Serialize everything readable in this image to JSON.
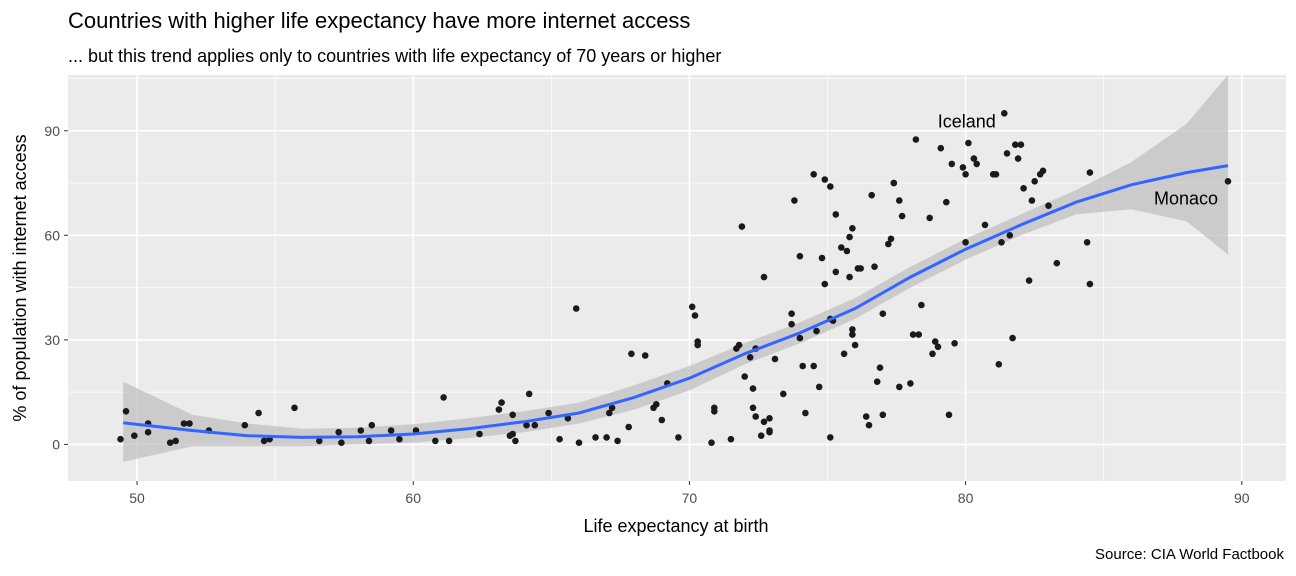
{
  "chart_data": {
    "type": "scatter",
    "title": "Countries with higher life expectancy have more internet access",
    "subtitle": "... but this trend applies only to countries with life expectancy of 70 years or higher",
    "caption": "Source: CIA World Factbook",
    "xlabel": "Life expectancy at birth",
    "ylabel": "% of population with internet access",
    "xlim": [
      47.5,
      91.6
    ],
    "ylim": [
      -10.5,
      106
    ],
    "x_ticks": [
      50,
      60,
      70,
      80,
      90
    ],
    "y_ticks": [
      0,
      30,
      60,
      90
    ],
    "grid": true,
    "colors": {
      "panel": "#ebebeb",
      "grid": "#ffffff",
      "points": "#1a1a1a",
      "smooth": "#3366ff",
      "ribbon": "#bdbdbd"
    },
    "annotations": [
      {
        "label": "Iceland",
        "x": 81.2,
        "y": 95
      },
      {
        "label": "Monaco",
        "x": 89.5,
        "y": 75.5
      }
    ],
    "smooth": [
      {
        "x": 49.5,
        "y": 6.2,
        "lo": -5.0,
        "hi": 18.0
      },
      {
        "x": 52,
        "y": 4.0,
        "lo": -0.5,
        "hi": 8.5
      },
      {
        "x": 54,
        "y": 2.5,
        "lo": -0.5,
        "hi": 6.0
      },
      {
        "x": 56,
        "y": 2.0,
        "lo": -0.5,
        "hi": 4.5
      },
      {
        "x": 58,
        "y": 2.2,
        "lo": 0.0,
        "hi": 4.8
      },
      {
        "x": 60,
        "y": 3.0,
        "lo": 0.5,
        "hi": 5.8
      },
      {
        "x": 62,
        "y": 4.5,
        "lo": 1.8,
        "hi": 7.5
      },
      {
        "x": 64,
        "y": 6.5,
        "lo": 3.5,
        "hi": 9.5
      },
      {
        "x": 66,
        "y": 9.0,
        "lo": 6.0,
        "hi": 12.0
      },
      {
        "x": 68,
        "y": 13.5,
        "lo": 10.0,
        "hi": 17.0
      },
      {
        "x": 70,
        "y": 19.0,
        "lo": 15.5,
        "hi": 22.5
      },
      {
        "x": 72,
        "y": 26.0,
        "lo": 23.0,
        "hi": 29.0
      },
      {
        "x": 74,
        "y": 32.0,
        "lo": 29.0,
        "hi": 35.0
      },
      {
        "x": 76,
        "y": 39.0,
        "lo": 36.0,
        "hi": 42.0
      },
      {
        "x": 78,
        "y": 48.0,
        "lo": 45.0,
        "hi": 51.0
      },
      {
        "x": 80,
        "y": 56.0,
        "lo": 53.0,
        "hi": 59.0
      },
      {
        "x": 82,
        "y": 63.0,
        "lo": 60.0,
        "hi": 66.0
      },
      {
        "x": 84,
        "y": 69.5,
        "lo": 66.0,
        "hi": 73.0
      },
      {
        "x": 86,
        "y": 74.5,
        "lo": 67.5,
        "hi": 81.0
      },
      {
        "x": 88,
        "y": 78.0,
        "lo": 64.0,
        "hi": 92.0
      },
      {
        "x": 89.5,
        "y": 80.0,
        "lo": 54.5,
        "hi": 106.0
      }
    ],
    "points": [
      [
        49.4,
        1.5
      ],
      [
        49.6,
        9.5
      ],
      [
        49.9,
        2.5
      ],
      [
        50.4,
        6
      ],
      [
        50.4,
        3.5
      ],
      [
        51.2,
        0.5
      ],
      [
        51.4,
        1
      ],
      [
        51.7,
        6
      ],
      [
        51.9,
        6
      ],
      [
        52.6,
        4
      ],
      [
        53.9,
        5.5
      ],
      [
        54.4,
        9
      ],
      [
        54.6,
        1
      ],
      [
        54.8,
        1.5
      ],
      [
        55.7,
        10.5
      ],
      [
        56.6,
        1
      ],
      [
        57.3,
        3.5
      ],
      [
        57.4,
        0.5
      ],
      [
        58.1,
        4
      ],
      [
        58.4,
        1
      ],
      [
        58.5,
        5.5
      ],
      [
        59.2,
        4
      ],
      [
        59.5,
        1.5
      ],
      [
        60.1,
        4
      ],
      [
        60.8,
        1
      ],
      [
        61.1,
        13.5
      ],
      [
        61.3,
        1
      ],
      [
        62.4,
        3
      ],
      [
        63.1,
        10
      ],
      [
        63.2,
        12
      ],
      [
        63.5,
        2.5
      ],
      [
        63.6,
        3
      ],
      [
        63.6,
        8.5
      ],
      [
        63.7,
        1
      ],
      [
        64.1,
        5.5
      ],
      [
        64.2,
        14.5
      ],
      [
        64.4,
        5.5
      ],
      [
        64.9,
        9
      ],
      [
        65.3,
        1.5
      ],
      [
        65.6,
        7.5
      ],
      [
        65.9,
        39
      ],
      [
        66.0,
        0.5
      ],
      [
        66.6,
        2
      ],
      [
        67.0,
        2
      ],
      [
        67.1,
        9
      ],
      [
        67.2,
        10.5
      ],
      [
        67.4,
        1
      ],
      [
        67.8,
        5
      ],
      [
        67.9,
        26
      ],
      [
        68.4,
        25.5
      ],
      [
        68.7,
        10.5
      ],
      [
        68.8,
        11.5
      ],
      [
        69.0,
        7
      ],
      [
        69.2,
        17.5
      ],
      [
        69.6,
        2
      ],
      [
        70.1,
        39.5
      ],
      [
        70.2,
        37
      ],
      [
        70.3,
        29.5
      ],
      [
        70.3,
        28.5
      ],
      [
        70.8,
        0.5
      ],
      [
        70.9,
        10.5
      ],
      [
        70.9,
        9.5
      ],
      [
        71.5,
        1.5
      ],
      [
        71.7,
        27.5
      ],
      [
        71.8,
        28.5
      ],
      [
        71.9,
        62.5
      ],
      [
        72.0,
        19.5
      ],
      [
        72.2,
        25
      ],
      [
        72.3,
        16
      ],
      [
        72.3,
        10.5
      ],
      [
        72.4,
        27.5
      ],
      [
        72.4,
        8
      ],
      [
        72.6,
        2.5
      ],
      [
        72.7,
        48
      ],
      [
        72.7,
        6.5
      ],
      [
        72.9,
        3.5
      ],
      [
        72.9,
        4
      ],
      [
        72.9,
        7.5
      ],
      [
        73.1,
        24.5
      ],
      [
        73.4,
        14.5
      ],
      [
        73.7,
        34.5
      ],
      [
        73.7,
        37.5
      ],
      [
        73.8,
        70
      ],
      [
        74.0,
        30.5
      ],
      [
        74.0,
        54
      ],
      [
        74.1,
        22.5
      ],
      [
        74.2,
        9
      ],
      [
        74.5,
        22.5
      ],
      [
        74.5,
        77.5
      ],
      [
        74.6,
        32.5
      ],
      [
        74.7,
        16.5
      ],
      [
        74.8,
        53.5
      ],
      [
        74.9,
        46
      ],
      [
        74.9,
        76
      ],
      [
        75.1,
        74
      ],
      [
        75.1,
        36
      ],
      [
        75.1,
        2
      ],
      [
        75.2,
        35.5
      ],
      [
        75.3,
        66
      ],
      [
        75.3,
        49.5
      ],
      [
        75.5,
        56.5
      ],
      [
        75.6,
        26
      ],
      [
        75.7,
        55.5
      ],
      [
        75.8,
        59.5
      ],
      [
        75.8,
        48
      ],
      [
        75.9,
        62
      ],
      [
        75.9,
        33
      ],
      [
        75.9,
        31.5
      ],
      [
        76.0,
        28.5
      ],
      [
        76.1,
        50.5
      ],
      [
        76.2,
        50.5
      ],
      [
        76.4,
        8
      ],
      [
        76.5,
        5.5
      ],
      [
        76.6,
        71.5
      ],
      [
        76.7,
        51
      ],
      [
        76.8,
        18
      ],
      [
        76.9,
        22
      ],
      [
        77.0,
        8.5
      ],
      [
        77.0,
        37.5
      ],
      [
        77.2,
        57.5
      ],
      [
        77.3,
        59
      ],
      [
        77.4,
        75
      ],
      [
        77.4,
        75
      ],
      [
        77.6,
        16.5
      ],
      [
        77.6,
        70
      ],
      [
        77.7,
        65.5
      ],
      [
        78.0,
        17.5
      ],
      [
        78.1,
        31.5
      ],
      [
        78.2,
        87.5
      ],
      [
        78.3,
        31.5
      ],
      [
        78.4,
        40
      ],
      [
        78.7,
        65
      ],
      [
        78.8,
        26
      ],
      [
        78.9,
        29.5
      ],
      [
        79.0,
        28
      ],
      [
        79.1,
        85
      ],
      [
        79.3,
        69.5
      ],
      [
        79.4,
        8.5
      ],
      [
        79.5,
        80.5
      ],
      [
        79.6,
        29
      ],
      [
        79.9,
        79.5
      ],
      [
        80.0,
        77.5
      ],
      [
        80.0,
        58
      ],
      [
        80.1,
        86.5
      ],
      [
        80.3,
        82
      ],
      [
        80.4,
        80.5
      ],
      [
        80.7,
        63
      ],
      [
        81.0,
        77.5
      ],
      [
        81.1,
        77.5
      ],
      [
        81.2,
        23
      ],
      [
        81.3,
        58
      ],
      [
        81.4,
        95
      ],
      [
        81.5,
        83.5
      ],
      [
        81.6,
        60
      ],
      [
        81.7,
        30.5
      ],
      [
        81.8,
        86
      ],
      [
        81.9,
        82
      ],
      [
        82.0,
        86
      ],
      [
        82.1,
        73.5
      ],
      [
        82.3,
        47
      ],
      [
        82.4,
        70
      ],
      [
        82.5,
        75.5
      ],
      [
        82.7,
        77.5
      ],
      [
        82.8,
        78.5
      ],
      [
        83.0,
        68.5
      ],
      [
        83.3,
        52
      ],
      [
        84.4,
        58
      ],
      [
        84.5,
        46
      ],
      [
        84.5,
        78
      ],
      [
        89.5,
        75.5
      ]
    ]
  }
}
